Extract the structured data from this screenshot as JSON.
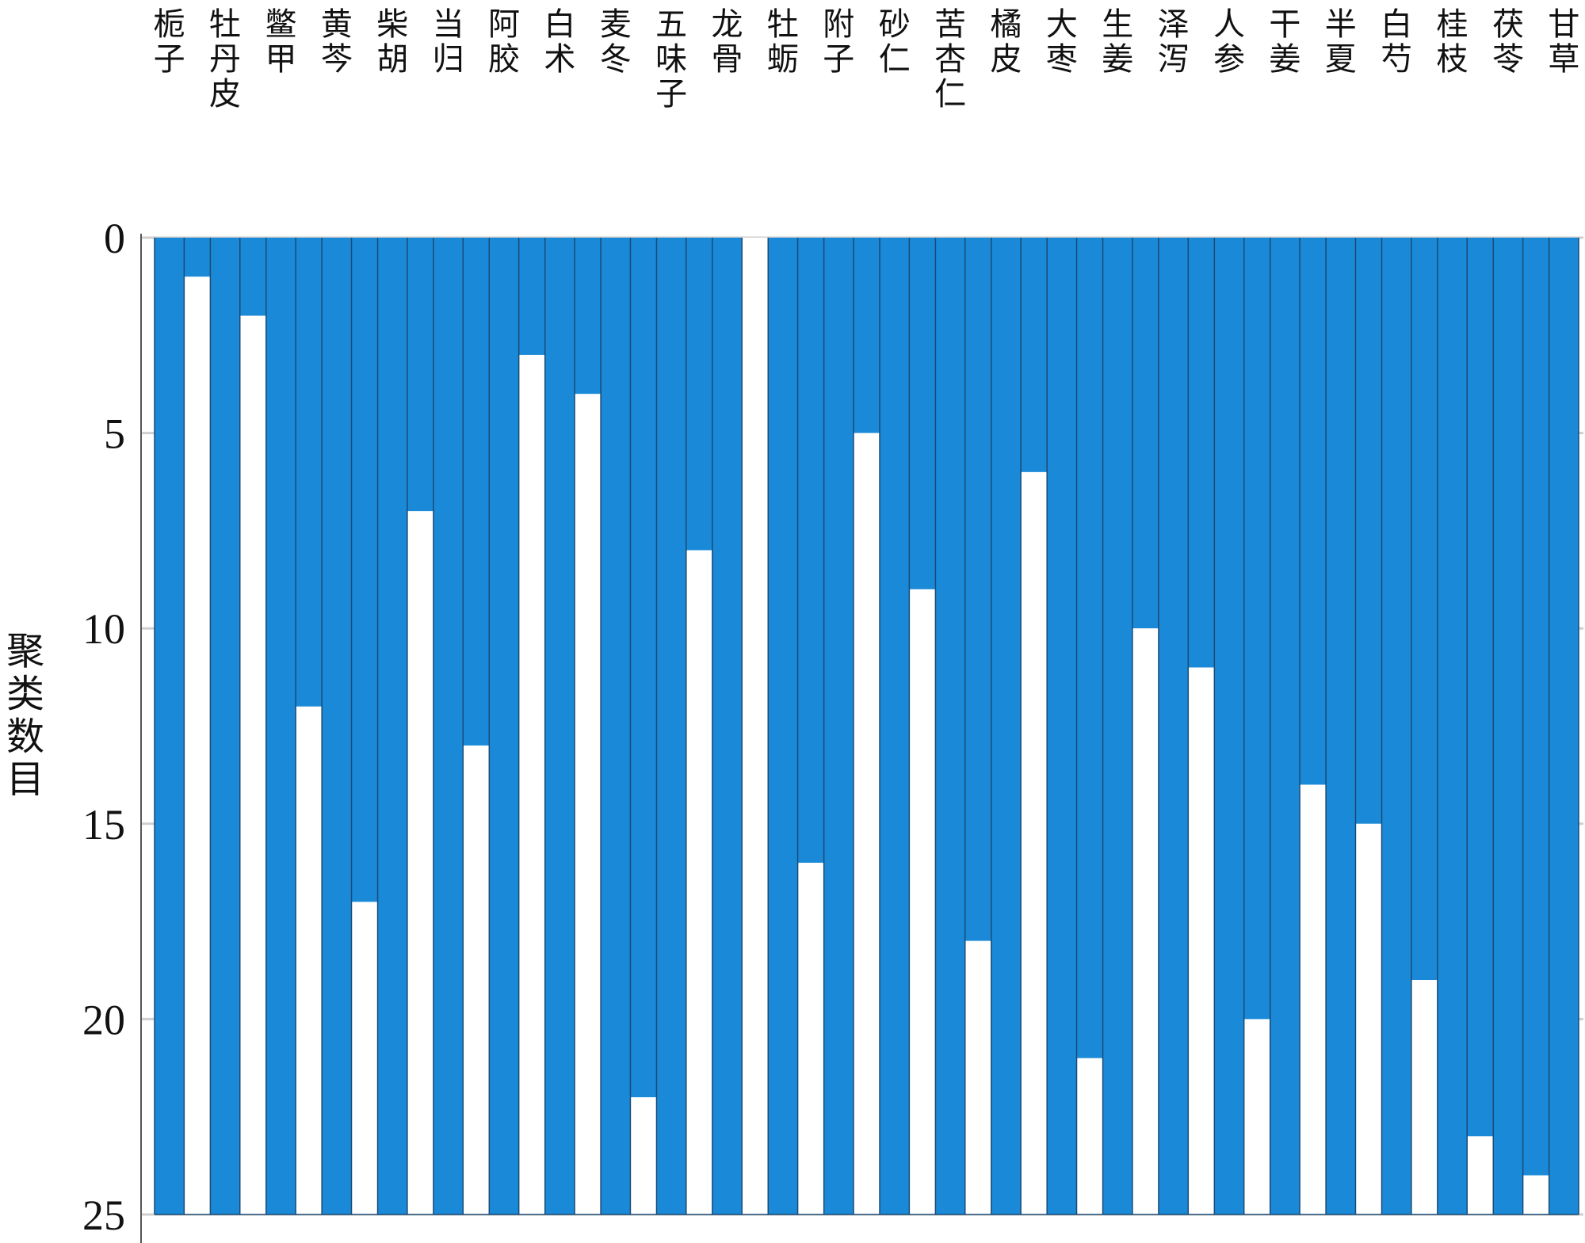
{
  "chart_data": {
    "type": "icicle",
    "ylabel": "聚类数目",
    "yticks": [
      0,
      5,
      10,
      15,
      20,
      25
    ],
    "ylim": [
      0,
      25
    ],
    "y_inverted": true,
    "grid": "horizontal",
    "labels_position": "top",
    "herbs": [
      "栀子",
      "牡丹皮",
      "鳖甲",
      "黄芩",
      "柴胡",
      "当归",
      "阿胶",
      "白术",
      "麦冬",
      "五味子",
      "龙骨",
      "牡蛎",
      "附子",
      "砂仁",
      "苦杏仁",
      "橘皮",
      "大枣",
      "生姜",
      "泽泻",
      "人参",
      "干姜",
      "半夏",
      "白芍",
      "桂枝",
      "茯苓",
      "甘草"
    ],
    "gap_merge_levels": [
      1,
      2,
      12,
      17,
      7,
      13,
      3,
      4,
      22,
      8,
      0,
      16,
      5,
      9,
      18,
      6,
      21,
      10,
      11,
      20,
      14,
      15,
      19,
      23,
      24
    ],
    "colors": {
      "filled": "#1a8ad8",
      "gap": "#ffffff",
      "divider": "#1b4a73"
    }
  }
}
